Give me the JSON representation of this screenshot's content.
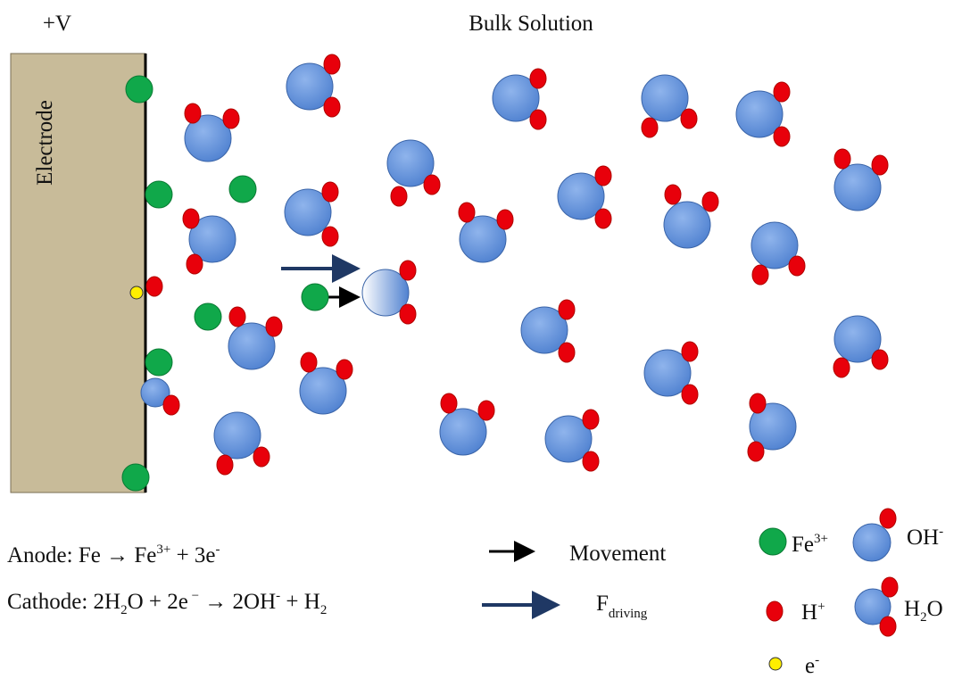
{
  "labels": {
    "voltage": "+V",
    "bulk": "Bulk Solution",
    "electrode": "Electrode"
  },
  "equations": {
    "anode": [
      "Anode: Fe → Fe",
      "3+",
      " + 3e",
      "-"
    ],
    "cathode": [
      "Cathode: 2H",
      "2",
      "O + 2e",
      " −",
      " → 2OH",
      "-",
      " + H",
      "2"
    ]
  },
  "legend": {
    "movement": "Movement",
    "force": [
      "F",
      "driving"
    ],
    "iron": [
      "Fe",
      "3+"
    ],
    "hydroxide": [
      "OH",
      "-"
    ],
    "proton": [
      "H",
      "+"
    ],
    "water": [
      "H",
      "2",
      "O"
    ],
    "electron": [
      "e",
      "-"
    ]
  }
}
